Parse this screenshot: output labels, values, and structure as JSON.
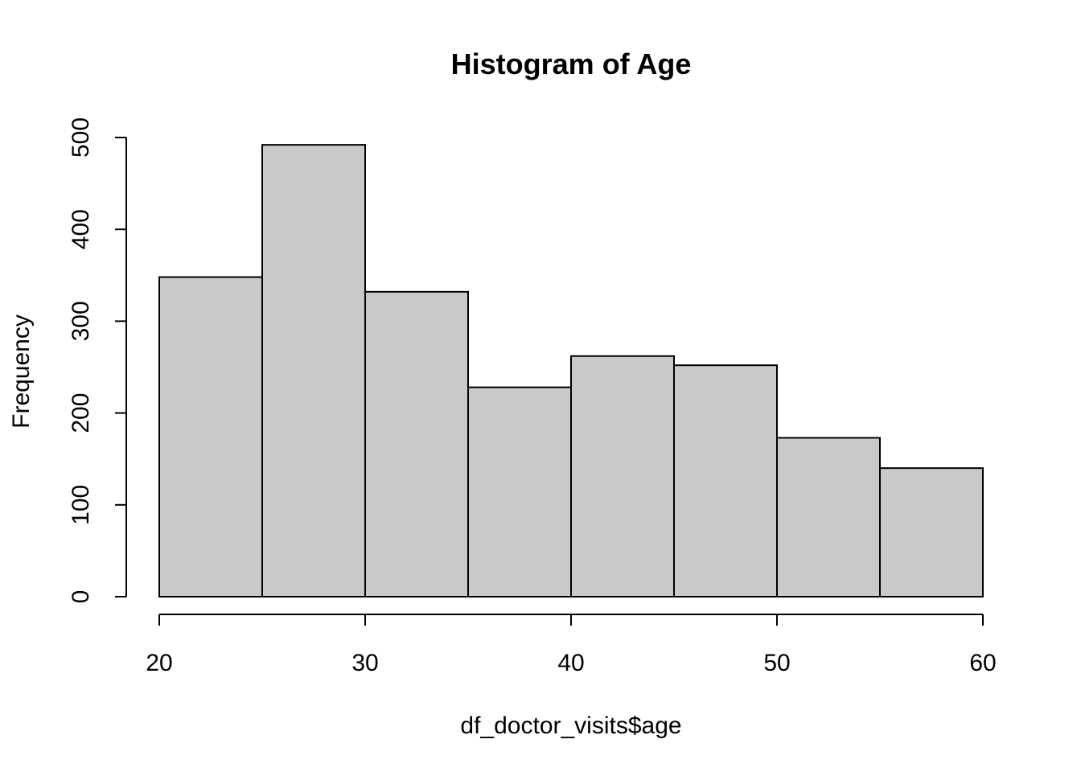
{
  "chart_data": {
    "type": "bar",
    "title": "Histogram of Age",
    "xlabel": "df_doctor_visits$age",
    "ylabel": "Frequency",
    "bins": [
      {
        "from": 20,
        "to": 25,
        "count": 348
      },
      {
        "from": 25,
        "to": 30,
        "count": 492
      },
      {
        "from": 30,
        "to": 35,
        "count": 332
      },
      {
        "from": 35,
        "to": 40,
        "count": 228
      },
      {
        "from": 40,
        "to": 45,
        "count": 262
      },
      {
        "from": 45,
        "to": 50,
        "count": 252
      },
      {
        "from": 50,
        "to": 55,
        "count": 173
      },
      {
        "from": 55,
        "to": 60,
        "count": 140
      }
    ],
    "xlim": [
      20,
      60
    ],
    "ylim": [
      0,
      500
    ],
    "x_ticks": [
      20,
      30,
      40,
      50,
      60
    ],
    "y_ticks": [
      0,
      100,
      200,
      300,
      400,
      500
    ],
    "bar_color": "#c9c9c9",
    "border_color": "#000000",
    "grid": false
  }
}
